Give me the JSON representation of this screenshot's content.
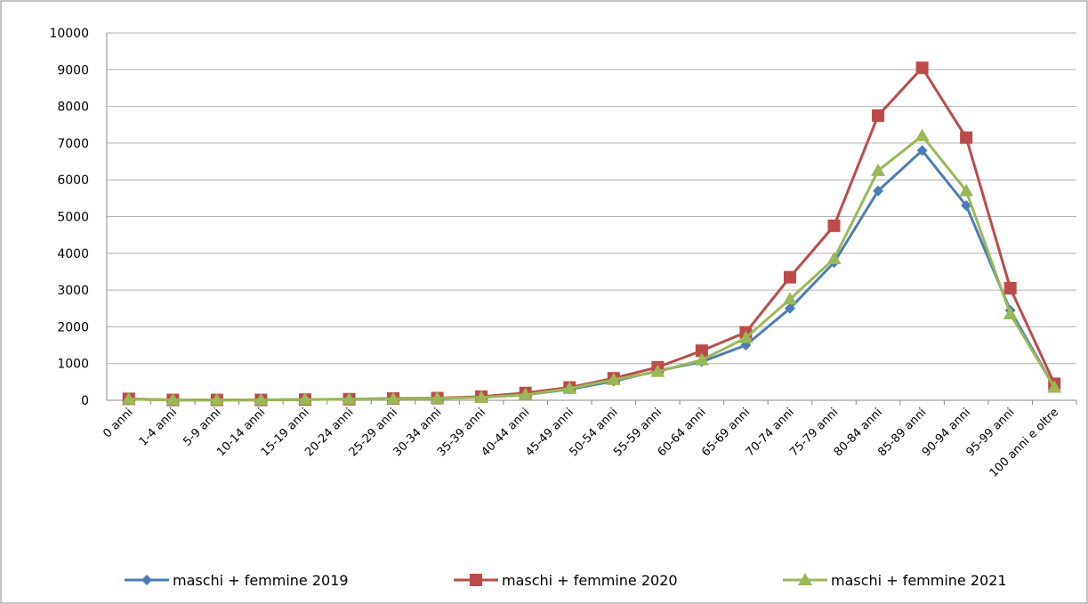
{
  "chart_data": {
    "type": "line",
    "categories": [
      "0 anni",
      "1-4 anni",
      "5-9 anni",
      "10-14 anni",
      "15-19 anni",
      "20-24 anni",
      "25-29 anni",
      "30-34 anni",
      "35-39 anni",
      "40-44 anni",
      "45-49 anni",
      "50-54 anni",
      "55-59 anni",
      "60-64 anni",
      "65-69 anni",
      "70-74 anni",
      "75-79 anni",
      "80-84 anni",
      "85-89 anni",
      "90-94 anni",
      "95-99 anni",
      "100 anni e oltre"
    ],
    "series": [
      {
        "name": "maschi + femmine 2019",
        "color": "#4a7ebb",
        "marker": "diamond",
        "values": [
          30,
          10,
          10,
          10,
          20,
          30,
          40,
          50,
          80,
          150,
          300,
          520,
          800,
          1050,
          1500,
          2500,
          3750,
          5700,
          6800,
          5300,
          2450,
          350
        ]
      },
      {
        "name": "maschi + femmine 2020",
        "color": "#be4b48",
        "marker": "square",
        "values": [
          40,
          10,
          10,
          10,
          20,
          30,
          50,
          60,
          100,
          200,
          350,
          600,
          900,
          1350,
          1850,
          3350,
          4750,
          7750,
          9050,
          7150,
          3050,
          450
        ]
      },
      {
        "name": "maschi + femmine 2021",
        "color": "#98b954",
        "marker": "triangle",
        "values": [
          30,
          10,
          10,
          10,
          20,
          30,
          40,
          50,
          80,
          150,
          320,
          560,
          780,
          1100,
          1700,
          2750,
          3850,
          6250,
          7200,
          5700,
          2350,
          350
        ]
      }
    ],
    "ylim": [
      0,
      10000
    ],
    "yticks": [
      0,
      1000,
      2000,
      3000,
      4000,
      5000,
      6000,
      7000,
      8000,
      9000,
      10000
    ],
    "grid": true,
    "legend": "bottom"
  }
}
